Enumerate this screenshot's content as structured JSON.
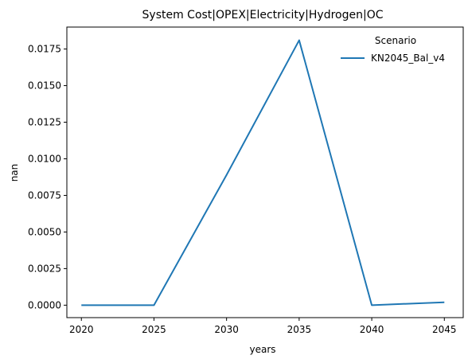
{
  "chart_data": {
    "type": "line",
    "title": "System Cost|OPEX|Electricity|Hydrogen|OC",
    "xlabel": "years",
    "ylabel": "nan",
    "x": [
      2020,
      2025,
      2030,
      2035,
      2040,
      2045
    ],
    "x_ticks": [
      "2020",
      "2025",
      "2030",
      "2035",
      "2040",
      "2045"
    ],
    "y_ticks": [
      "0.0000",
      "0.0025",
      "0.0050",
      "0.0075",
      "0.0100",
      "0.0125",
      "0.0150",
      "0.0175"
    ],
    "xlim": [
      2019,
      2046.3
    ],
    "ylim": [
      -0.00085,
      0.019
    ],
    "grid": false,
    "legend": {
      "title": "Scenario",
      "placement": "top-right"
    },
    "series": [
      {
        "name": "KN2045_Bal_v4",
        "color": "#1f77b4",
        "values": [
          0.0,
          0.0,
          0.0089,
          0.0181,
          0.0,
          0.0002
        ]
      }
    ]
  }
}
